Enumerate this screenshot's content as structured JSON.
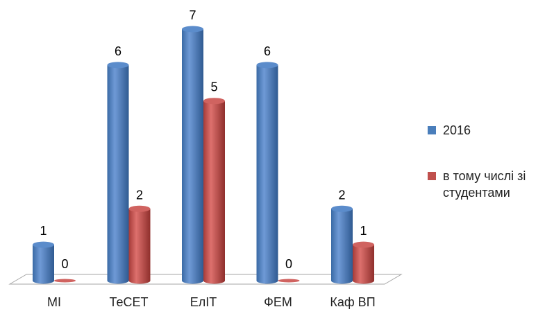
{
  "chart_data": {
    "type": "bar",
    "categories": [
      "МІ",
      "ТеСЕТ",
      "ЕлІТ",
      "ФЕМ",
      "Каф ВП"
    ],
    "series": [
      {
        "name": "2016",
        "values": [
          1,
          6,
          7,
          6,
          2
        ],
        "color": "#4a7ebb"
      },
      {
        "name": "в тому числі зі студентами",
        "values": [
          0,
          2,
          5,
          0,
          1
        ],
        "color": "#c0504d"
      }
    ],
    "ylim": [
      0,
      7
    ],
    "grid": false,
    "legend_position": "right",
    "data_labels": true,
    "three_d": true
  },
  "legend": {
    "items": [
      {
        "label": "2016",
        "color": "#4a7ebb"
      },
      {
        "label_lines": [
          "в тому числі зі",
          "студентами"
        ],
        "color": "#c0504d"
      }
    ]
  }
}
